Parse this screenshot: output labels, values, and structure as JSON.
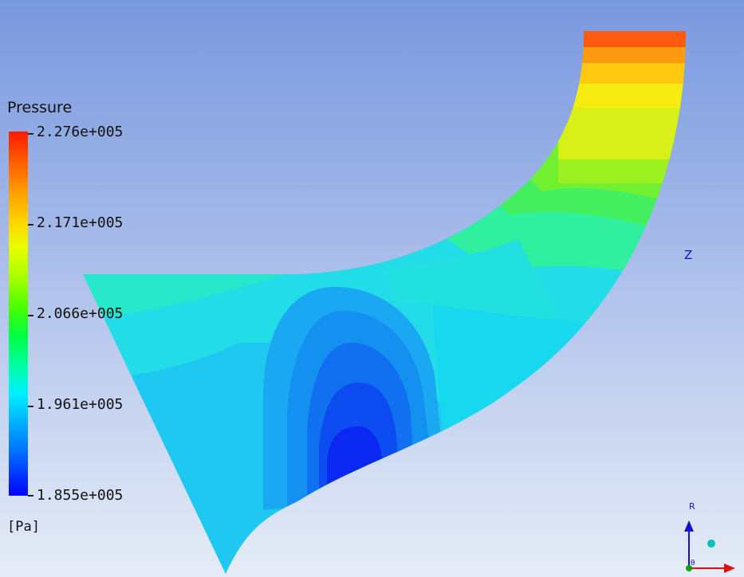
{
  "legend": {
    "title": "Pressure",
    "ticks": [
      {
        "label": "2.276e+005",
        "value": 227600
      },
      {
        "label": "2.171e+005",
        "value": 217100
      },
      {
        "label": "2.066e+005",
        "value": 206600
      },
      {
        "label": "1.961e+005",
        "value": 196100
      },
      {
        "label": "1.855e+005",
        "value": 185500
      }
    ],
    "unit": "[Pa]",
    "colors": {
      "max": "#ff1a00",
      "high": "#e8ff00",
      "mid": "#00ff40",
      "low_mid": "#00f0ff",
      "min": "#0000ff"
    }
  },
  "axes": {
    "z_label": "Z",
    "r_label": "R",
    "theta_label": "θ",
    "colors": {
      "z": "#1010cc",
      "r": "#1010cc",
      "x_arrow": "#dd1010",
      "sphere": "#00bfbf",
      "vertical": "#1010cc"
    }
  },
  "contour": {
    "field": "Pressure",
    "icon": "meridional-pressure-contour"
  }
}
